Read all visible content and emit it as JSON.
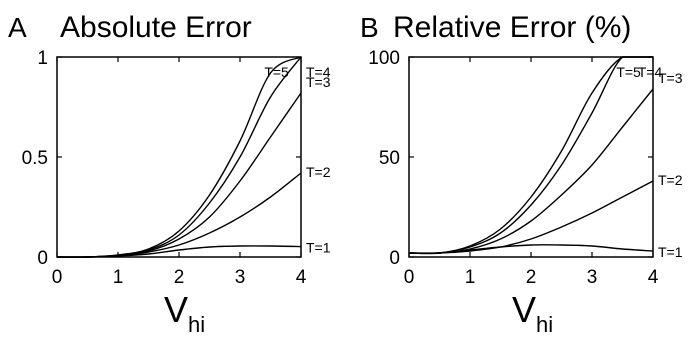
{
  "chart_data": [
    {
      "type": "line",
      "panel_letter": "A",
      "title": "Absolute Error",
      "xlabel": "V",
      "xlabel_subscript": "hi",
      "ylabel": "",
      "xlim": [
        0,
        4
      ],
      "ylim": [
        0,
        1
      ],
      "xticks": [
        0,
        1,
        2,
        3,
        4
      ],
      "yticks": [
        0,
        0.5,
        1
      ],
      "ytick_labels": [
        "0",
        "0.5",
        "1"
      ],
      "x": [
        0,
        0.5,
        1,
        1.5,
        2,
        2.5,
        3,
        3.5,
        4
      ],
      "series": [
        {
          "name": "T=1",
          "values": [
            0,
            0.0,
            0.005,
            0.015,
            0.035,
            0.05,
            0.055,
            0.055,
            0.052
          ]
        },
        {
          "name": "T=2",
          "values": [
            0,
            0.0,
            0.007,
            0.025,
            0.06,
            0.12,
            0.2,
            0.3,
            0.42
          ]
        },
        {
          "name": "T=3",
          "values": [
            0,
            0.0,
            0.008,
            0.03,
            0.09,
            0.2,
            0.38,
            0.6,
            0.82
          ]
        },
        {
          "name": "T=4",
          "values": [
            0,
            0.0,
            0.009,
            0.035,
            0.11,
            0.27,
            0.5,
            0.8,
            1.0
          ]
        },
        {
          "name": "T=5",
          "values": [
            0,
            0.0,
            0.01,
            0.04,
            0.13,
            0.31,
            0.58,
            0.92,
            1.0
          ]
        }
      ]
    },
    {
      "type": "line",
      "panel_letter": "B",
      "title": "Relative Error (%)",
      "xlabel": "V",
      "xlabel_subscript": "hi",
      "ylabel": "",
      "xlim": [
        0,
        4
      ],
      "ylim": [
        0,
        100
      ],
      "xticks": [
        0,
        1,
        2,
        3,
        4
      ],
      "yticks": [
        0,
        50,
        100
      ],
      "ytick_labels": [
        "0",
        "50",
        "100"
      ],
      "x": [
        0,
        0.5,
        1,
        1.5,
        2,
        2.5,
        3,
        3.5,
        4
      ],
      "series": [
        {
          "name": "T=1",
          "values": [
            2,
            2,
            3.5,
            5,
            6,
            6,
            5.5,
            4,
            3
          ]
        },
        {
          "name": "T=2",
          "values": [
            2,
            2,
            3,
            5,
            9,
            15,
            22,
            30,
            38
          ]
        },
        {
          "name": "T=3",
          "values": [
            2,
            2,
            4,
            9,
            18,
            31,
            46,
            65,
            84
          ]
        },
        {
          "name": "T=4",
          "values": [
            2,
            2,
            5,
            12,
            26,
            46,
            72,
            100,
            100
          ]
        },
        {
          "name": "T=5",
          "values": [
            2,
            2,
            5.5,
            14,
            30,
            53,
            82,
            100,
            100
          ]
        }
      ]
    }
  ]
}
